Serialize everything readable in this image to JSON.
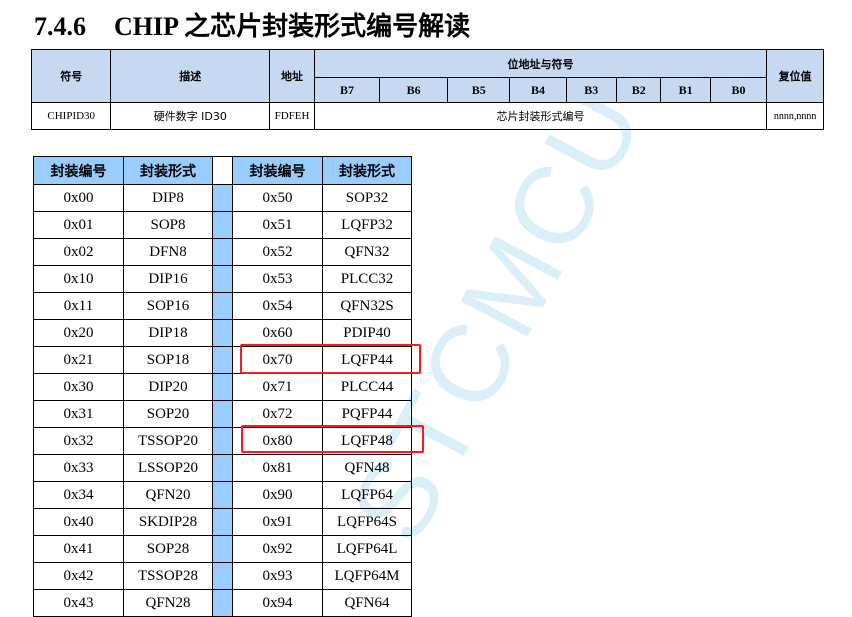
{
  "title": {
    "number": "7.4.6",
    "text": "CHIP 之芯片封装形式编号解读"
  },
  "register_table": {
    "headers": {
      "symbol": "符号",
      "description": "描述",
      "address": "地址",
      "bits_group": "位地址与符号",
      "reset": "复位值"
    },
    "bits": [
      "B7",
      "B6",
      "B5",
      "B4",
      "B3",
      "B2",
      "B1",
      "B0"
    ],
    "row": {
      "symbol": "CHIPID30",
      "description": "硬件数字 ID30",
      "address": "FDFEH",
      "field": "芯片封装形式编号",
      "reset": "nnnn,nnnn"
    }
  },
  "package_table": {
    "headers": [
      "封装编号",
      "封装形式",
      "封装编号",
      "封装形式"
    ],
    "rows": [
      [
        "0x00",
        "DIP8",
        "0x50",
        "SOP32"
      ],
      [
        "0x01",
        "SOP8",
        "0x51",
        "LQFP32"
      ],
      [
        "0x02",
        "DFN8",
        "0x52",
        "QFN32"
      ],
      [
        "0x10",
        "DIP16",
        "0x53",
        "PLCC32"
      ],
      [
        "0x11",
        "SOP16",
        "0x54",
        "QFN32S"
      ],
      [
        "0x20",
        "DIP18",
        "0x60",
        "PDIP40"
      ],
      [
        "0x21",
        "SOP18",
        "0x70",
        "LQFP44"
      ],
      [
        "0x30",
        "DIP20",
        "0x71",
        "PLCC44"
      ],
      [
        "0x31",
        "SOP20",
        "0x72",
        "PQFP44"
      ],
      [
        "0x32",
        "TSSOP20",
        "0x80",
        "LQFP48"
      ],
      [
        "0x33",
        "LSSOP20",
        "0x81",
        "QFN48"
      ],
      [
        "0x34",
        "QFN20",
        "0x90",
        "LQFP64"
      ],
      [
        "0x40",
        "SKDIP28",
        "0x91",
        "LQFP64S"
      ],
      [
        "0x41",
        "SOP28",
        "0x92",
        "LQFP64L"
      ],
      [
        "0x42",
        "TSSOP28",
        "0x93",
        "LQFP64M"
      ],
      [
        "0x43",
        "QFN28",
        "0x94",
        "QFN64"
      ]
    ],
    "highlighted": [
      "0x70",
      "0x80"
    ],
    "highlight_color": "#ff1a1a"
  },
  "watermark": "STCMCU"
}
